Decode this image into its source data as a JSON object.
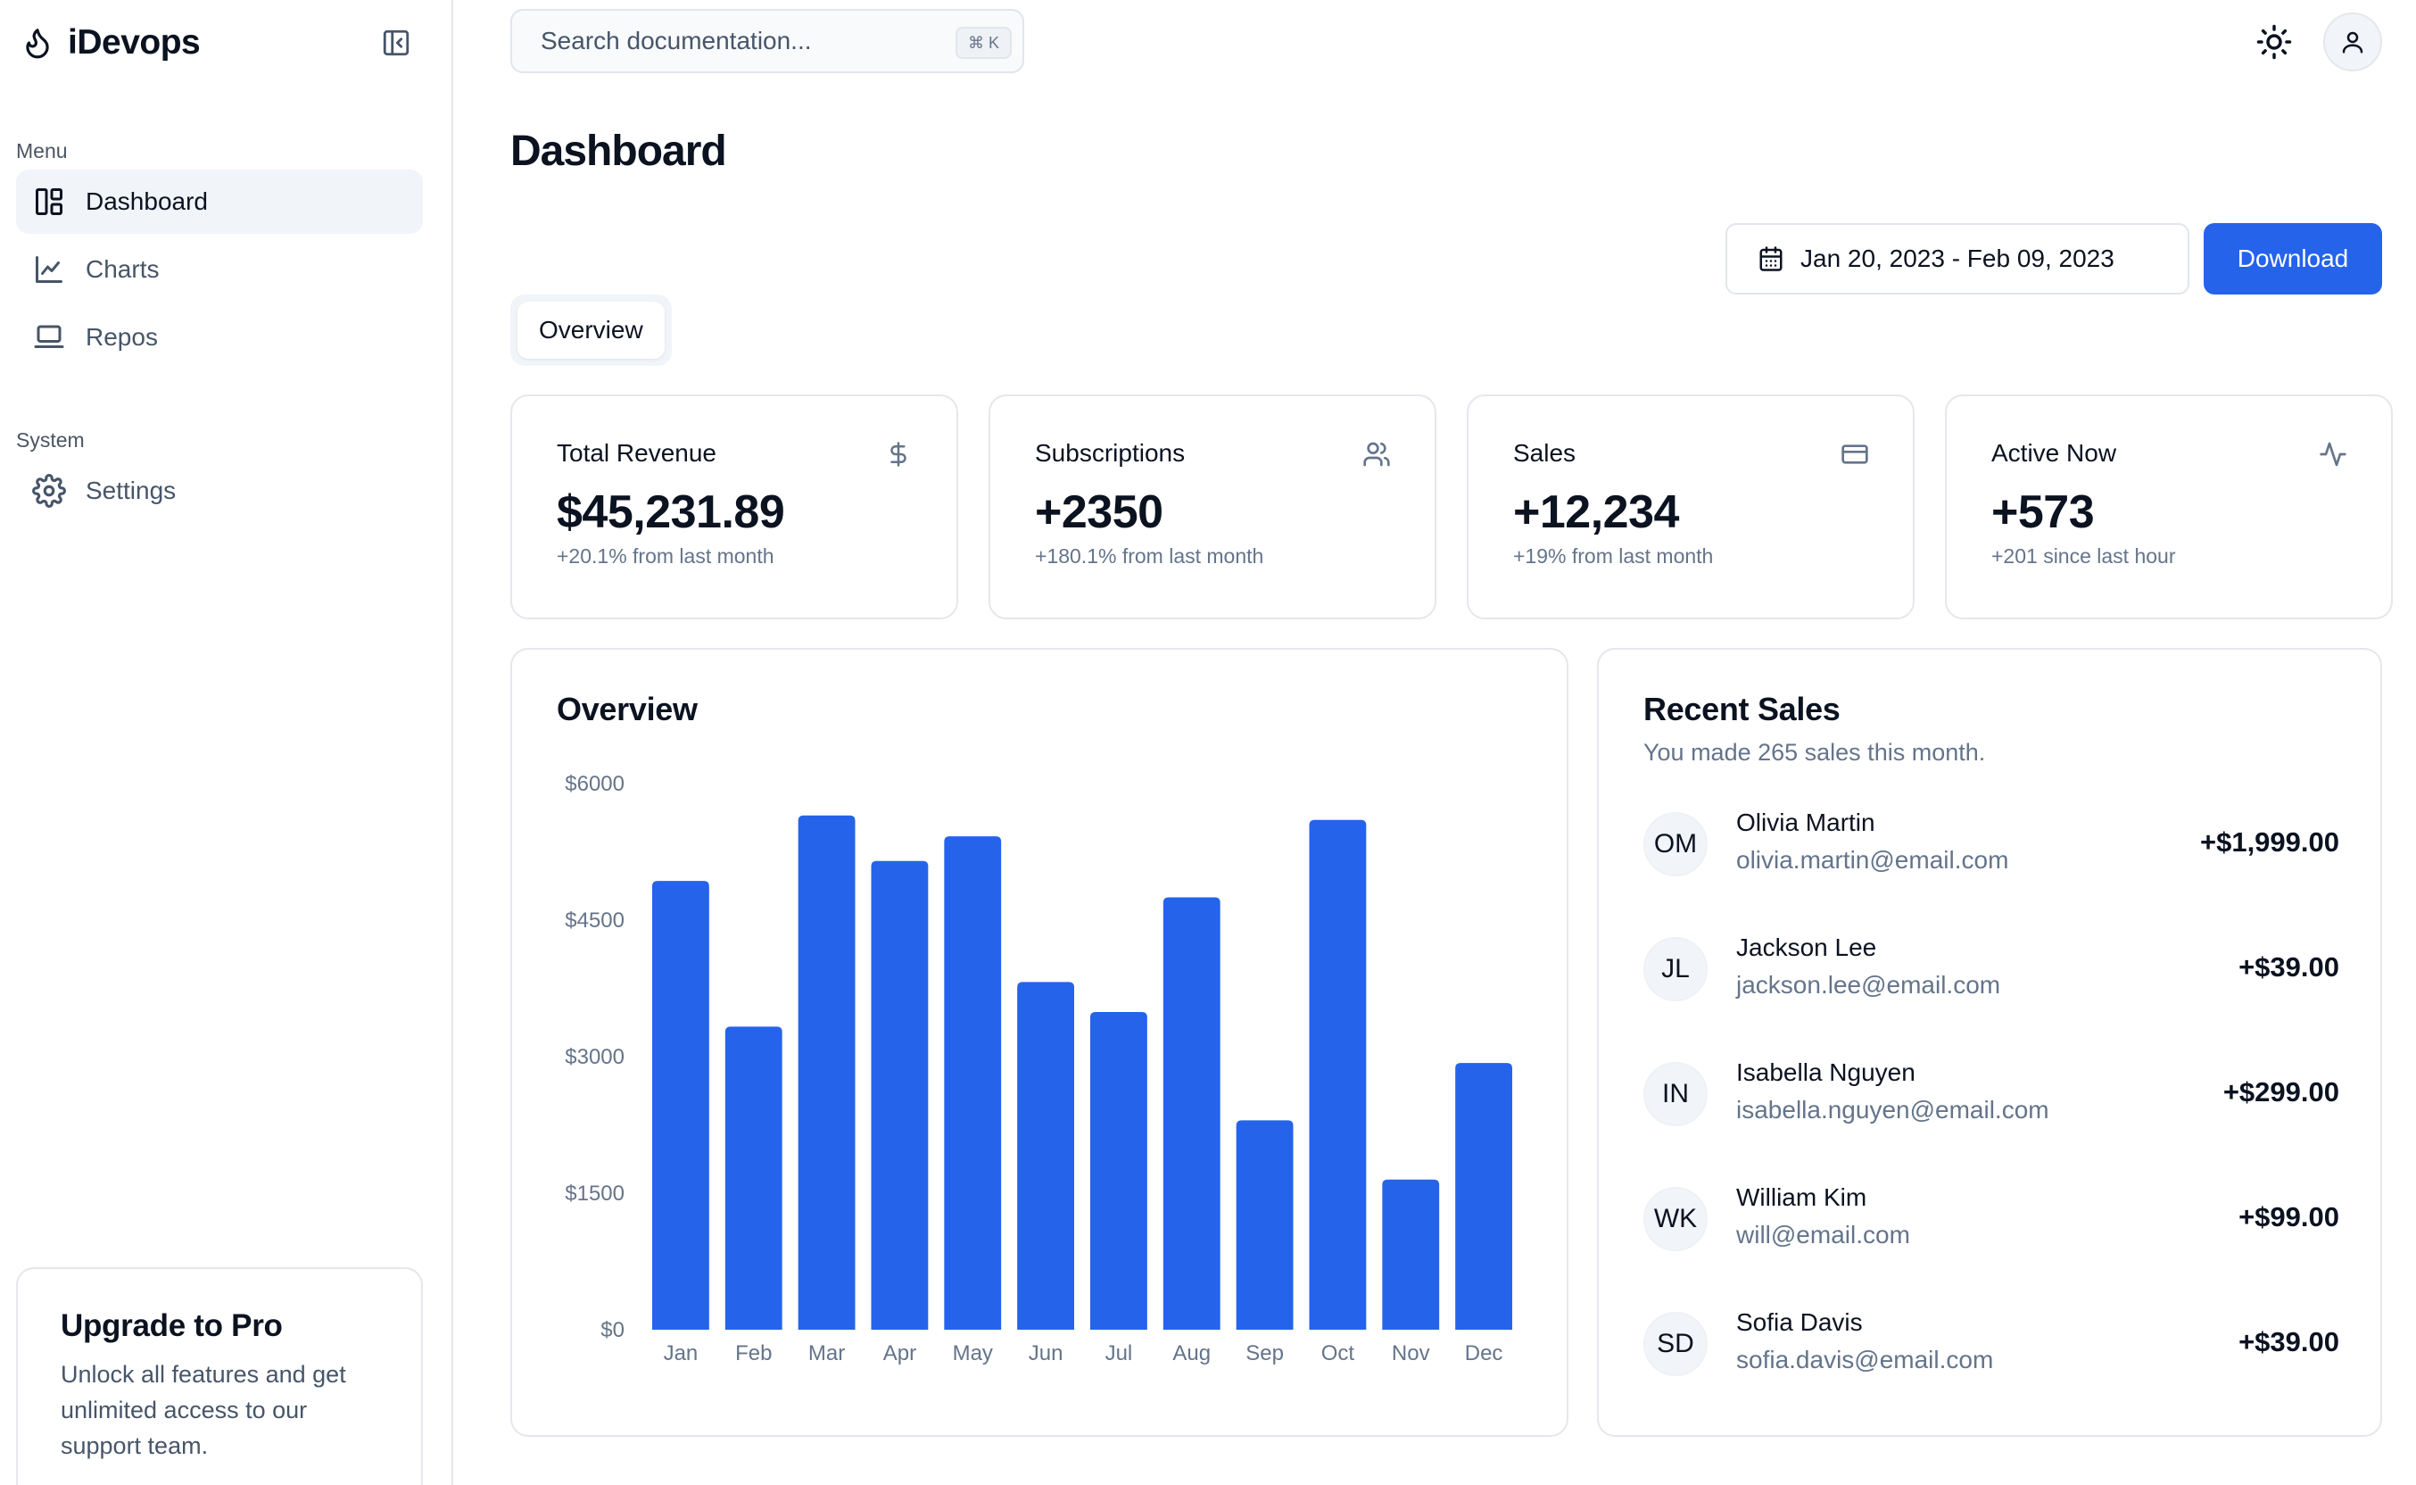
{
  "app": {
    "name": "iDevops"
  },
  "sidebar": {
    "menu_label": "Menu",
    "system_label": "System",
    "items": [
      {
        "label": "Dashboard",
        "icon": "dashboard-icon",
        "active": true
      },
      {
        "label": "Charts",
        "icon": "line-chart-icon",
        "active": false
      },
      {
        "label": "Repos",
        "icon": "laptop-icon",
        "active": false
      }
    ],
    "system_items": [
      {
        "label": "Settings",
        "icon": "gear-icon",
        "active": false
      }
    ],
    "upgrade": {
      "title": "Upgrade to Pro",
      "text": "Unlock all features and get unlimited access to our support team."
    }
  },
  "topbar": {
    "search_placeholder": "Search documentation...",
    "shortcut": "⌘ K"
  },
  "page": {
    "title": "Dashboard",
    "date_range": "Jan 20, 2023 - Feb 09, 2023",
    "download_label": "Download",
    "tab": "Overview"
  },
  "stats": [
    {
      "title": "Total Revenue",
      "value": "$45,231.89",
      "sub": "+20.1% from last month",
      "icon": "dollar-icon"
    },
    {
      "title": "Subscriptions",
      "value": "+2350",
      "sub": "+180.1% from last month",
      "icon": "users-icon"
    },
    {
      "title": "Sales",
      "value": "+12,234",
      "sub": "+19% from last month",
      "icon": "credit-card-icon"
    },
    {
      "title": "Active Now",
      "value": "+573",
      "sub": "+201 since last hour",
      "icon": "activity-icon"
    }
  ],
  "overview": {
    "title": "Overview"
  },
  "chart_data": {
    "type": "bar",
    "categories": [
      "Jan",
      "Feb",
      "Mar",
      "Apr",
      "May",
      "Jun",
      "Jul",
      "Aug",
      "Sep",
      "Oct",
      "Nov",
      "Dec"
    ],
    "values": [
      4930,
      3330,
      5650,
      5150,
      5420,
      3820,
      3490,
      4750,
      2300,
      5600,
      1650,
      2930
    ],
    "y_ticks": [
      "$0",
      "$1500",
      "$3000",
      "$4500",
      "$6000"
    ],
    "ylim": [
      0,
      6000
    ],
    "color": "#2563eb",
    "grid": false
  },
  "recent_sales": {
    "title": "Recent Sales",
    "subtitle": "You made 265 sales this month.",
    "items": [
      {
        "initials": "OM",
        "name": "Olivia Martin",
        "email": "olivia.martin@email.com",
        "amount": "+$1,999.00"
      },
      {
        "initials": "JL",
        "name": "Jackson Lee",
        "email": "jackson.lee@email.com",
        "amount": "+$39.00"
      },
      {
        "initials": "IN",
        "name": "Isabella Nguyen",
        "email": "isabella.nguyen@email.com",
        "amount": "+$299.00"
      },
      {
        "initials": "WK",
        "name": "William Kim",
        "email": "will@email.com",
        "amount": "+$99.00"
      },
      {
        "initials": "SD",
        "name": "Sofia Davis",
        "email": "sofia.davis@email.com",
        "amount": "+$39.00"
      }
    ]
  }
}
